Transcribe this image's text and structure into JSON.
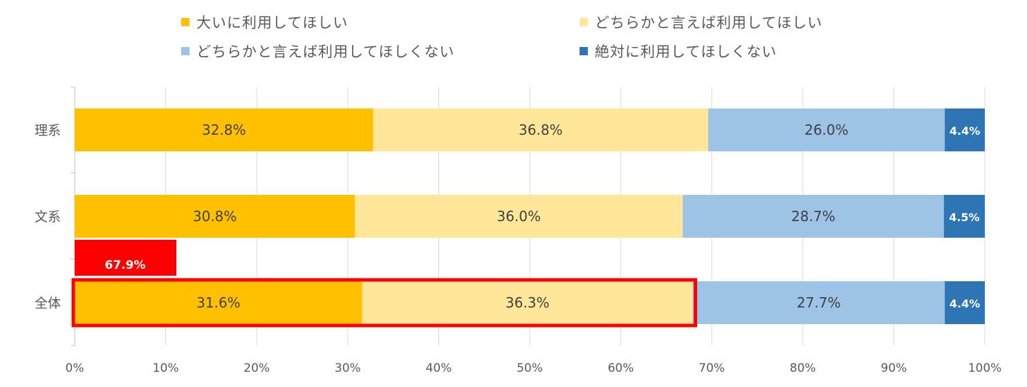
{
  "chart_data": {
    "type": "bar",
    "orientation": "horizontal",
    "stacked": true,
    "categories": [
      "理系",
      "文系",
      "全体"
    ],
    "series": [
      {
        "name": "大いに利用してほしい",
        "color": "#FFC000",
        "values": [
          32.8,
          30.8,
          31.6
        ],
        "labels": [
          "32.8%",
          "30.8%",
          "31.6%"
        ],
        "label_color": "#404040"
      },
      {
        "name": "どちらかと言えば利用してほしい",
        "color": "#FFE699",
        "values": [
          36.8,
          36.0,
          36.3
        ],
        "labels": [
          "36.8%",
          "36.0%",
          "36.3%"
        ],
        "label_color": "#404040"
      },
      {
        "name": "どちらかと言えば利用してほしくない",
        "color": "#9DC3E6",
        "values": [
          26.0,
          28.7,
          27.7
        ],
        "labels": [
          "26.0%",
          "28.7%",
          "27.7%"
        ],
        "label_color": "#404040"
      },
      {
        "name": "絶対に利用してほしくない",
        "color": "#2E75B6",
        "values": [
          4.4,
          4.5,
          4.4
        ],
        "labels": [
          "4.4%",
          "4.5%",
          "4.4%"
        ],
        "label_color": "#ffffff"
      }
    ],
    "xlim": [
      0,
      100
    ],
    "xticks": [
      "0%",
      "10%",
      "20%",
      "30%",
      "40%",
      "50%",
      "60%",
      "70%",
      "80%",
      "90%",
      "100%"
    ],
    "grid": true,
    "legend_position": "top",
    "highlight": {
      "category": "全体",
      "series_range": [
        0,
        1
      ],
      "label": "67.9%",
      "color": "#FF0000"
    }
  }
}
